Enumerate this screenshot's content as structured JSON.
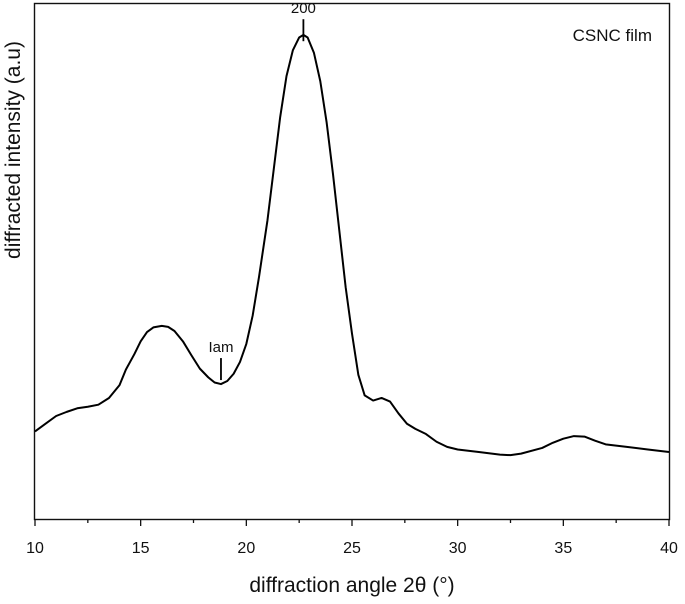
{
  "chart_data": {
    "type": "line",
    "title": "",
    "xlabel": "diffraction angle 2θ (°)",
    "ylabel": "diffracted intensity (a.u)",
    "xlim": [
      10,
      40
    ],
    "ylim": [
      0,
      1.0
    ],
    "x_ticks": [
      "10",
      "15",
      "20",
      "25",
      "30",
      "35",
      "40"
    ],
    "legend": {
      "text": "CSNC film",
      "position": "top-right"
    },
    "grid": false,
    "annotations": [
      {
        "text": "200",
        "x": 22.7,
        "y": 0.92
      },
      {
        "text": "Iam",
        "x": 18.8,
        "y": 0.262
      }
    ],
    "series": [
      {
        "name": "CSNC film",
        "x": [
          10,
          10.5,
          11,
          11.5,
          12,
          12.5,
          13,
          13.5,
          14,
          14.3,
          14.7,
          15,
          15.3,
          15.6,
          16,
          16.3,
          16.6,
          17,
          17.4,
          17.8,
          18.2,
          18.5,
          18.8,
          19.1,
          19.4,
          19.7,
          20,
          20.3,
          20.6,
          21,
          21.3,
          21.6,
          21.9,
          22.2,
          22.5,
          22.7,
          22.9,
          23.2,
          23.5,
          23.8,
          24.1,
          24.4,
          24.7,
          25,
          25.3,
          25.6,
          26,
          26.4,
          26.8,
          27.2,
          27.6,
          28,
          28.5,
          29,
          29.5,
          30,
          31,
          32,
          32.5,
          33,
          34,
          34.5,
          35,
          35.5,
          36,
          36.5,
          37,
          38,
          39,
          40
        ],
        "y": [
          0.17,
          0.185,
          0.2,
          0.208,
          0.215,
          0.218,
          0.222,
          0.235,
          0.26,
          0.29,
          0.32,
          0.345,
          0.363,
          0.372,
          0.375,
          0.373,
          0.365,
          0.345,
          0.318,
          0.292,
          0.275,
          0.265,
          0.262,
          0.268,
          0.282,
          0.305,
          0.34,
          0.395,
          0.47,
          0.58,
          0.68,
          0.78,
          0.86,
          0.91,
          0.935,
          0.94,
          0.935,
          0.905,
          0.85,
          0.77,
          0.67,
          0.56,
          0.45,
          0.36,
          0.28,
          0.24,
          0.23,
          0.235,
          0.228,
          0.205,
          0.185,
          0.175,
          0.165,
          0.15,
          0.14,
          0.135,
          0.13,
          0.125,
          0.124,
          0.127,
          0.138,
          0.148,
          0.156,
          0.161,
          0.16,
          0.152,
          0.145,
          0.14,
          0.135,
          0.13
        ]
      }
    ]
  }
}
